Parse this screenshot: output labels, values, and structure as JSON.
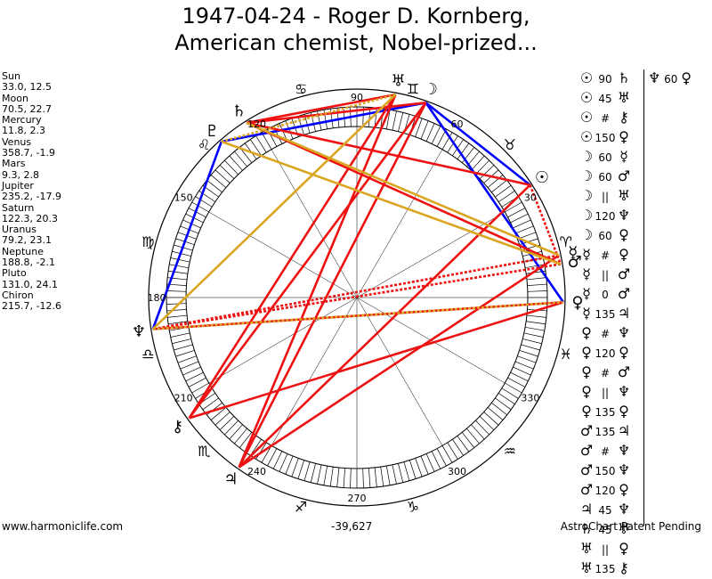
{
  "title": {
    "line1": "1947-04-24 - Roger D. Kornberg,",
    "line2": "American chemist, Nobel-prized..."
  },
  "positions": [
    {
      "name": "Sun",
      "value": "33.0, 12.5"
    },
    {
      "name": "Moon",
      "value": "70.5, 22.7"
    },
    {
      "name": "Mercury",
      "value": "11.8, 2.3"
    },
    {
      "name": "Venus",
      "value": "358.7, -1.9"
    },
    {
      "name": "Mars",
      "value": "9.3, 2.8"
    },
    {
      "name": "Jupiter",
      "value": "235.2, -17.9"
    },
    {
      "name": "Saturn",
      "value": "122.3, 20.3"
    },
    {
      "name": "Uranus",
      "value": "79.2, 23.1"
    },
    {
      "name": "Neptune",
      "value": "188.8, -2.1"
    },
    {
      "name": "Pluto",
      "value": "131.0, 24.1"
    },
    {
      "name": "Chiron",
      "value": "215.7, -12.6"
    }
  ],
  "wheel": {
    "degree_labels": [
      "90",
      "60",
      "30",
      "120",
      "150",
      "180",
      "210",
      "240",
      "270",
      "300",
      "330"
    ],
    "sign_glyphs": [
      "♈",
      "♉",
      "♊",
      "♋",
      "♌",
      "♍",
      "♎",
      "♏",
      "♐",
      "♑",
      "♒",
      "♓"
    ],
    "planets": [
      {
        "name": "Sun",
        "glyph": "☉",
        "longitude": 33.0
      },
      {
        "name": "Moon",
        "glyph": "☽",
        "longitude": 70.5
      },
      {
        "name": "Mercury",
        "glyph": "☿",
        "longitude": 11.8
      },
      {
        "name": "Venus",
        "glyph": "♀",
        "longitude": 358.7
      },
      {
        "name": "Mars",
        "glyph": "♂",
        "longitude": 9.3
      },
      {
        "name": "Jupiter",
        "glyph": "♃",
        "longitude": 235.2
      },
      {
        "name": "Saturn",
        "glyph": "♄",
        "longitude": 122.3
      },
      {
        "name": "Uranus",
        "glyph": "♅",
        "longitude": 79.2
      },
      {
        "name": "Neptune",
        "glyph": "♆",
        "longitude": 188.8
      },
      {
        "name": "Pluto",
        "glyph": "♇",
        "longitude": 131.0
      },
      {
        "name": "Chiron",
        "glyph": "⚷",
        "longitude": 215.7
      }
    ],
    "aspect_lines": [
      {
        "from": "Moon",
        "to": "Sun",
        "color": "#0000ff",
        "style": "solid"
      },
      {
        "from": "Moon",
        "to": "Venus",
        "color": "#0000ff",
        "style": "solid"
      },
      {
        "from": "Moon",
        "to": "Pluto",
        "color": "#0000ff",
        "style": "solid"
      },
      {
        "from": "Neptune",
        "to": "Pluto",
        "color": "#0000ff",
        "style": "solid"
      },
      {
        "from": "Sun",
        "to": "Saturn",
        "color": "#ee1111",
        "style": "solid"
      },
      {
        "from": "Sun",
        "to": "Mars",
        "color": "#ee1111",
        "style": "dotted"
      },
      {
        "from": "Sun",
        "to": "Jupiter",
        "color": "#ee1111",
        "style": "solid"
      },
      {
        "from": "Moon",
        "to": "Chiron",
        "color": "#ee1111",
        "style": "solid"
      },
      {
        "from": "Moon",
        "to": "Jupiter",
        "color": "#ee1111",
        "style": "solid"
      },
      {
        "from": "Mercury",
        "to": "Neptune",
        "color": "#ee1111",
        "style": "dotted"
      },
      {
        "from": "Mercury",
        "to": "Jupiter",
        "color": "#ee1111",
        "style": "solid"
      },
      {
        "from": "Venus",
        "to": "Neptune",
        "color": "#ee1111",
        "style": "solid"
      },
      {
        "from": "Venus",
        "to": "Chiron",
        "color": "#ee1111",
        "style": "solid"
      },
      {
        "from": "Mars",
        "to": "Neptune",
        "color": "#ee1111",
        "style": "dotted"
      },
      {
        "from": "Mars",
        "to": "Saturn",
        "color": "#ee1111",
        "style": "solid"
      },
      {
        "from": "Jupiter",
        "to": "Uranus",
        "color": "#ee1111",
        "style": "solid"
      },
      {
        "from": "Saturn",
        "to": "Uranus",
        "color": "#ee1111",
        "style": "solid"
      },
      {
        "from": "Uranus",
        "to": "Chiron",
        "color": "#ee1111",
        "style": "solid"
      },
      {
        "from": "Moon",
        "to": "Saturn",
        "color": "#ee1111",
        "style": "solid"
      },
      {
        "from": "Uranus",
        "to": "Neptune",
        "color": "#daa520",
        "style": "solid"
      },
      {
        "from": "Uranus",
        "to": "Pluto",
        "color": "#daa520",
        "style": "dotted"
      },
      {
        "from": "Saturn",
        "to": "Mercury",
        "color": "#daa520",
        "style": "solid"
      },
      {
        "from": "Pluto",
        "to": "Mars",
        "color": "#daa520",
        "style": "solid"
      },
      {
        "from": "Neptune",
        "to": "Venus",
        "color": "#daa520",
        "style": "dotted"
      }
    ]
  },
  "aspect_list": [
    {
      "p1": "☉",
      "aspect": "90",
      "p2": "♄"
    },
    {
      "p1": "☉",
      "aspect": "45",
      "p2": "♅"
    },
    {
      "p1": "☉",
      "aspect": "#",
      "p2": "⚷"
    },
    {
      "p1": "☉",
      "aspect": "150",
      "p2": "♀"
    },
    {
      "p1": "☽",
      "aspect": "60",
      "p2": "☿"
    },
    {
      "p1": "☽",
      "aspect": "60",
      "p2": "♂"
    },
    {
      "p1": "☽",
      "aspect": "||",
      "p2": "♅"
    },
    {
      "p1": "☽",
      "aspect": "120",
      "p2": "♆"
    },
    {
      "p1": "☽",
      "aspect": "60",
      "p2": "♀"
    },
    {
      "p1": "☿",
      "aspect": "#",
      "p2": "♀"
    },
    {
      "p1": "☿",
      "aspect": "||",
      "p2": "♂"
    },
    {
      "p1": "☿",
      "aspect": "0",
      "p2": "♂"
    },
    {
      "p1": "☿",
      "aspect": "135",
      "p2": "♃"
    },
    {
      "p1": "♀",
      "aspect": "#",
      "p2": "♆"
    },
    {
      "p1": "♀",
      "aspect": "120",
      "p2": "♀"
    },
    {
      "p1": "♀",
      "aspect": "#",
      "p2": "♂"
    },
    {
      "p1": "♀",
      "aspect": "||",
      "p2": "♆"
    },
    {
      "p1": "♀",
      "aspect": "135",
      "p2": "♀"
    },
    {
      "p1": "♂",
      "aspect": "135",
      "p2": "♃"
    },
    {
      "p1": "♂",
      "aspect": "#",
      "p2": "♆"
    },
    {
      "p1": "♂",
      "aspect": "150",
      "p2": "♆"
    },
    {
      "p1": "♂",
      "aspect": "120",
      "p2": "♀"
    },
    {
      "p1": "♃",
      "aspect": "45",
      "p2": "♆"
    },
    {
      "p1": "♄",
      "aspect": "45",
      "p2": "♅"
    },
    {
      "p1": "♅",
      "aspect": "||",
      "p2": "♀"
    },
    {
      "p1": "♅",
      "aspect": "135",
      "p2": "⚷"
    }
  ],
  "extra_aspect": {
    "p1": "♆",
    "aspect": "60",
    "p2": "♀"
  },
  "footer": {
    "left": "www.harmoniclife.com",
    "center": "-39,627",
    "right": "AstroChart Patent Pending"
  }
}
